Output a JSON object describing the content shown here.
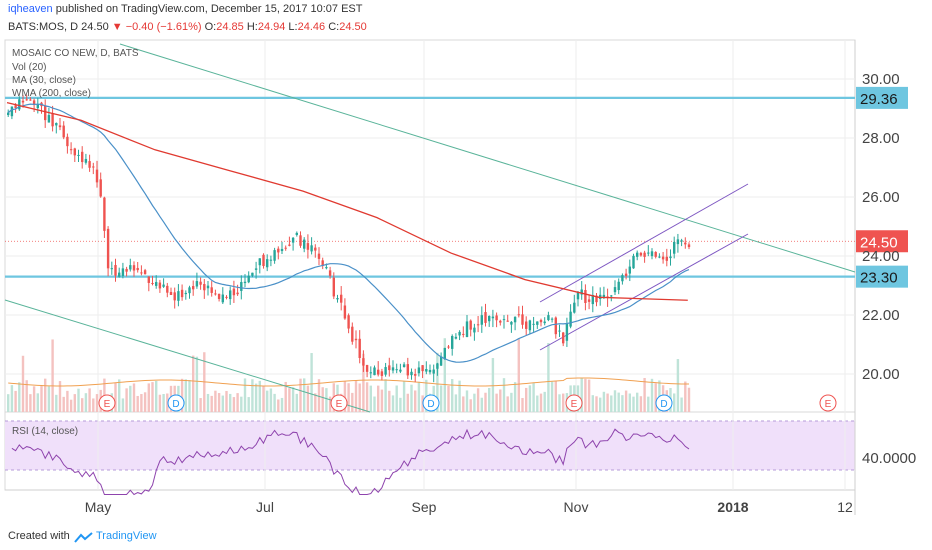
{
  "header": {
    "user": "iqheaven",
    "published_text": " published on TradingView.com, December 15, 2017 10:07 EST",
    "ticker": "BATS:MOS, D",
    "last": "24.50",
    "change": "−0.40 (−1.61%)",
    "ohlc_label_o": "O:",
    "ohlc_o": "24.85",
    "ohlc_label_h": "H:",
    "ohlc_h": "24.94",
    "ohlc_label_l": "L:",
    "ohlc_l": "24.46",
    "ohlc_label_c": "C:",
    "ohlc_c": "24.50"
  },
  "legend": {
    "symbol": "MOSAIC CO NEW, D, BATS",
    "vol": "Vol (20)",
    "ma": "MA (30, close)",
    "wma": "WMA (200, close)"
  },
  "rsi_label": "RSI (14, close)",
  "footer": {
    "created": "Created with",
    "brand": "TradingView"
  },
  "colors": {
    "up": "#26a69a",
    "down": "#ef5350",
    "ma": "#4a90c8",
    "wma": "#e03a30",
    "channel": "#7e57c2",
    "hline": "#6ec6e0",
    "trend": "#5ab49a",
    "price_tag": "#ef5350",
    "rsi_fill": "#f0e0fa"
  },
  "chart_data": {
    "type": "candlestick",
    "title": "MOSAIC CO NEW, D, BATS",
    "x_tick_labels": [
      "May",
      "Jul",
      "Sep",
      "Nov",
      "2018",
      "12"
    ],
    "y_tick_labels": [
      "30.00",
      "28.00",
      "26.00",
      "24.00",
      "22.00",
      "20.00"
    ],
    "ylim": [
      19.5,
      31.0
    ],
    "rsi_tick_label": "40.0000",
    "horizontal_levels": [
      {
        "label": "29.36",
        "value": 29.36
      },
      {
        "label": "23.30",
        "value": 23.3
      }
    ],
    "last_price": {
      "label": "24.50",
      "value": 24.5
    },
    "event_markers": [
      "E",
      "D",
      "E",
      "D",
      "E",
      "D",
      "E"
    ],
    "price_path_approx": [
      {
        "date": "Mar",
        "close": 28.8
      },
      {
        "date": "Apr",
        "close": 27.2
      },
      {
        "date": "May",
        "close": 23.5
      },
      {
        "date": "Jun",
        "close": 22.4
      },
      {
        "date": "Jul",
        "close": 23.9
      },
      {
        "date": "Aug",
        "close": 20.1
      },
      {
        "date": "Sep",
        "close": 20.6
      },
      {
        "date": "Oct",
        "close": 21.6
      },
      {
        "date": "Nov",
        "close": 22.6
      },
      {
        "date": "Dec",
        "close": 24.5
      }
    ]
  }
}
